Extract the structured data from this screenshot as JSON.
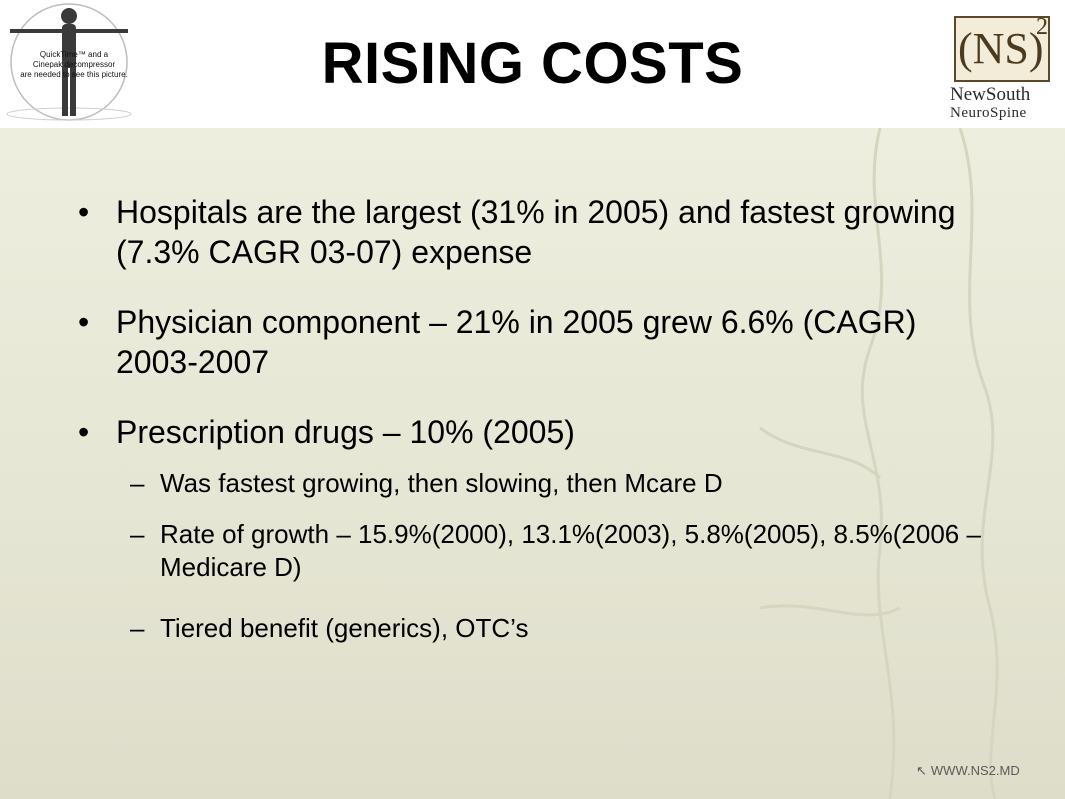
{
  "header": {
    "title": "RISING COSTS",
    "figure_note": "QuickTime™ and a\nCinepak decompressor\nare needed to see this picture.",
    "brand": {
      "mark": "(NS)",
      "superscript": "2",
      "name_line1": "NewSouth",
      "name_line2": "NeuroSpine"
    }
  },
  "bullets": [
    {
      "text": "Hospitals are the largest (31% in 2005) and fastest growing (7.3%  CAGR 03-07) expense"
    },
    {
      "text": "Physician component – 21% in 2005 grew 6.6% (CAGR) 2003-2007"
    },
    {
      "text": "Prescription drugs – 10% (2005)"
    }
  ],
  "sub_bullets": [
    {
      "text": "Was fastest growing, then slowing, then Mcare D"
    },
    {
      "text": "Rate of growth – 15.9%(2000), 13.1%(2003), 5.8%(2005), 8.5%(2006 – Medicare D)"
    },
    {
      "text": "Tiered benefit (generics), OTC’s"
    }
  ],
  "glyphs": {
    "bullet": "•",
    "dash": "–"
  },
  "footer": {
    "url": "WWW.NS2.MD",
    "icon": "mouse-pointer-icon"
  },
  "colors": {
    "content_bg": "#e6e6d4",
    "brand_brown": "#4a3a1e",
    "title": "#000000"
  }
}
